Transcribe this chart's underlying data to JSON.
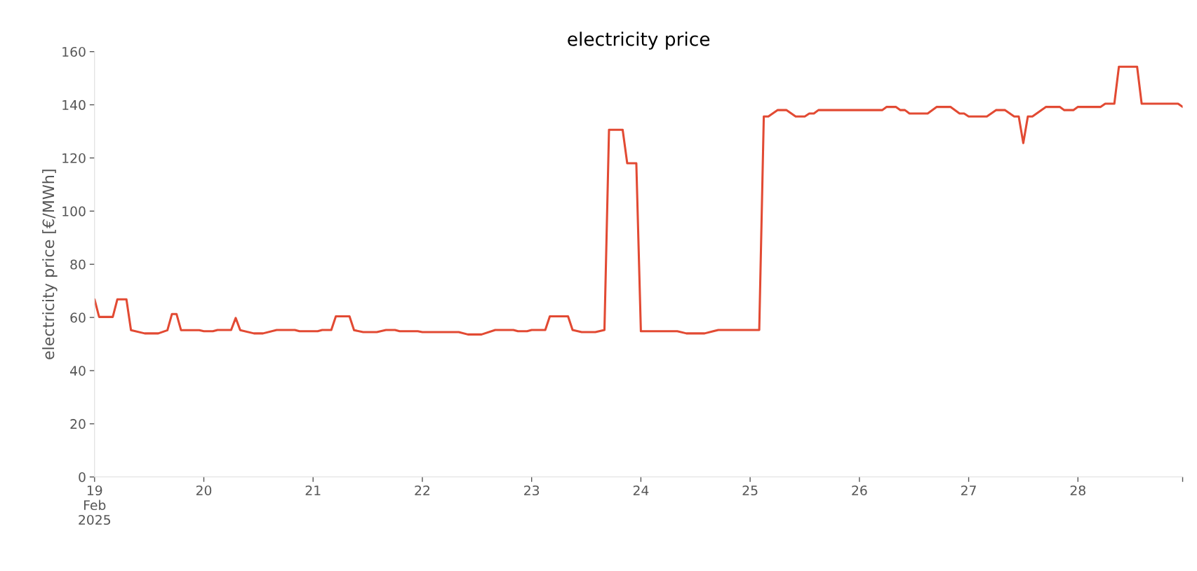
{
  "chart_data": {
    "type": "line",
    "title": "electricity price",
    "ylabel": "electricity price [€/MWh]",
    "x": [
      "2025-02-19T00:00",
      "2025-02-19T01:00",
      "2025-02-19T04:00",
      "2025-02-19T05:00",
      "2025-02-19T07:00",
      "2025-02-19T08:00",
      "2025-02-19T11:00",
      "2025-02-19T14:00",
      "2025-02-19T16:00",
      "2025-02-19T17:00",
      "2025-02-19T18:00",
      "2025-02-19T19:00",
      "2025-02-19T23:00",
      "2025-02-20T00:00",
      "2025-02-20T02:00",
      "2025-02-20T03:00",
      "2025-02-20T06:00",
      "2025-02-20T07:00",
      "2025-02-20T08:00",
      "2025-02-20T11:00",
      "2025-02-20T13:00",
      "2025-02-20T16:00",
      "2025-02-20T20:00",
      "2025-02-20T21:00",
      "2025-02-21T01:00",
      "2025-02-21T02:00",
      "2025-02-21T04:00",
      "2025-02-21T05:00",
      "2025-02-21T08:00",
      "2025-02-21T09:00",
      "2025-02-21T11:00",
      "2025-02-21T14:00",
      "2025-02-21T16:00",
      "2025-02-21T18:00",
      "2025-02-21T19:00",
      "2025-02-21T23:00",
      "2025-02-22T00:00",
      "2025-02-22T08:00",
      "2025-02-22T10:00",
      "2025-02-22T13:00",
      "2025-02-22T16:00",
      "2025-02-22T20:00",
      "2025-02-22T21:00",
      "2025-02-22T23:00",
      "2025-02-23T00:00",
      "2025-02-23T03:00",
      "2025-02-23T04:00",
      "2025-02-23T08:00",
      "2025-02-23T09:00",
      "2025-02-23T11:00",
      "2025-02-23T14:00",
      "2025-02-23T16:00",
      "2025-02-23T17:00",
      "2025-02-23T20:00",
      "2025-02-23T21:00",
      "2025-02-23T23:00",
      "2025-02-24T00:00",
      "2025-02-24T08:00",
      "2025-02-24T10:00",
      "2025-02-24T14:00",
      "2025-02-24T17:00",
      "2025-02-25T02:00",
      "2025-02-25T03:00",
      "2025-02-25T04:00",
      "2025-02-25T06:00",
      "2025-02-25T08:00",
      "2025-02-25T10:00",
      "2025-02-25T12:00",
      "2025-02-25T13:00",
      "2025-02-25T14:00",
      "2025-02-25T15:00",
      "2025-02-26T05:00",
      "2025-02-26T06:00",
      "2025-02-26T08:00",
      "2025-02-26T09:00",
      "2025-02-26T10:00",
      "2025-02-26T11:00",
      "2025-02-26T15:00",
      "2025-02-26T17:00",
      "2025-02-26T20:00",
      "2025-02-26T22:00",
      "2025-02-26T23:00",
      "2025-02-27T00:00",
      "2025-02-27T04:00",
      "2025-02-27T06:00",
      "2025-02-27T08:00",
      "2025-02-27T10:00",
      "2025-02-27T11:00",
      "2025-02-27T12:00",
      "2025-02-27T13:00",
      "2025-02-27T14:00",
      "2025-02-27T17:00",
      "2025-02-27T20:00",
      "2025-02-27T21:00",
      "2025-02-27T23:00",
      "2025-02-28T00:00",
      "2025-02-28T05:00",
      "2025-02-28T06:00",
      "2025-02-28T08:00",
      "2025-02-28T09:00",
      "2025-02-28T13:00",
      "2025-02-28T14:00",
      "2025-02-28T22:00",
      "2025-02-28T23:00"
    ],
    "series": [
      {
        "color": "#e24a33",
        "values": [
          66.8,
          60.2,
          60.2,
          66.8,
          66.8,
          55.2,
          54.0,
          54.0,
          55.2,
          61.3,
          61.3,
          55.2,
          55.2,
          54.8,
          54.8,
          55.3,
          55.3,
          59.8,
          55.2,
          54.0,
          54.0,
          55.3,
          55.3,
          54.8,
          54.8,
          55.3,
          55.3,
          60.4,
          60.4,
          55.2,
          54.5,
          54.5,
          55.3,
          55.3,
          54.8,
          54.8,
          54.5,
          54.5,
          53.6,
          53.6,
          55.3,
          55.3,
          54.8,
          54.8,
          55.3,
          55.3,
          60.4,
          60.4,
          55.3,
          54.5,
          54.5,
          55.3,
          130.6,
          130.6,
          118.0,
          118.0,
          54.8,
          54.8,
          54.0,
          54.0,
          55.3,
          55.3,
          135.6,
          135.6,
          138.0,
          138.0,
          135.6,
          135.6,
          136.7,
          136.7,
          138.0,
          138.0,
          139.2,
          139.2,
          138.0,
          138.0,
          136.7,
          136.7,
          139.2,
          139.2,
          136.7,
          136.7,
          135.6,
          135.6,
          138.0,
          138.0,
          135.6,
          135.6,
          125.6,
          135.6,
          135.6,
          139.2,
          139.2,
          138.0,
          138.0,
          139.2,
          139.2,
          140.4,
          140.4,
          154.3,
          154.3,
          140.4,
          140.4,
          139.2
        ]
      }
    ],
    "xlim": [
      "2025-02-19T00:00",
      "2025-02-28T23:00"
    ],
    "xticks": [
      {
        "value": "2025-02-19",
        "label": "19\nFeb\n2025"
      },
      {
        "value": "2025-02-20",
        "label": "20"
      },
      {
        "value": "2025-02-21",
        "label": "21"
      },
      {
        "value": "2025-02-22",
        "label": "22"
      },
      {
        "value": "2025-02-23",
        "label": "23"
      },
      {
        "value": "2025-02-24",
        "label": "24"
      },
      {
        "value": "2025-02-25",
        "label": "25"
      },
      {
        "value": "2025-02-26",
        "label": "26"
      },
      {
        "value": "2025-02-27",
        "label": "27"
      },
      {
        "value": "2025-02-28",
        "label": "28"
      },
      {
        "value": "2025-02-28T23:00",
        "label": null
      }
    ],
    "ylim": [
      0,
      160
    ],
    "yticks": [
      0,
      20,
      40,
      60,
      80,
      100,
      120,
      140,
      160
    ],
    "grid": false,
    "marker": "none",
    "line_style": "solid"
  }
}
